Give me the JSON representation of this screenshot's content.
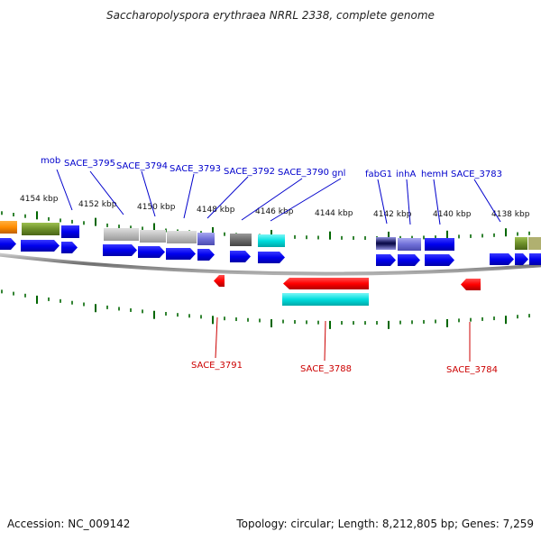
{
  "header": {
    "title": "Saccharopolyspora erythraea NRRL 2338, complete genome"
  },
  "footer": {
    "accession": "Accession: NC_009142",
    "stats": "Topology: circular; Length: 8,212,805 bp; Genes: 7,259"
  },
  "scale_labels": [
    "4154 kbp",
    "4152 kbp",
    "4150 kbp",
    "4148 kbp",
    "4146 kbp",
    "4144 kbp",
    "4142 kbp",
    "4140 kbp",
    "4138 kbp"
  ],
  "top_gene_labels": [
    "mob",
    "SACE_3795",
    "SACE_3794",
    "SACE_3793",
    "SACE_3792",
    "SACE_3790",
    "gnl",
    "fabG1",
    "inhA",
    "hemH",
    "SACE_3783"
  ],
  "bottom_gene_labels": [
    "SACE_3791",
    "SACE_3788",
    "SACE_3784"
  ],
  "colors": {
    "forward_blue": "#0000ee",
    "reverse_red": "#ff0000",
    "tick_green": "#006600",
    "label_blue": "#0000cc",
    "label_red": "#cc0000",
    "backbone": "#8a8a8a"
  }
}
